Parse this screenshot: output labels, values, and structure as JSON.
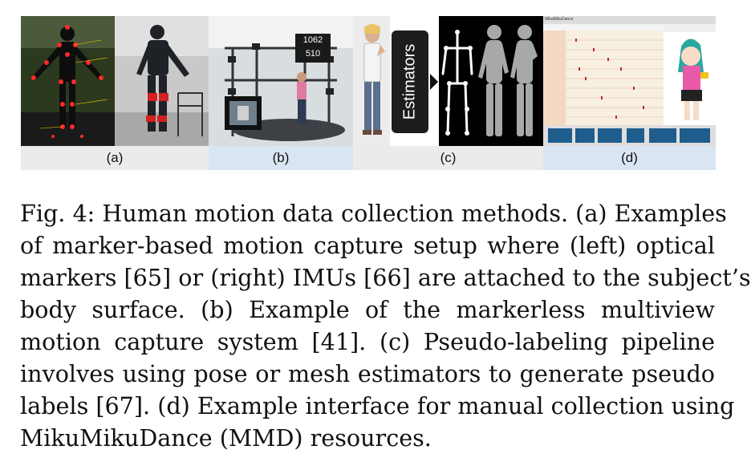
{
  "figure": {
    "panels": [
      {
        "label": "(a)",
        "strip": "gray"
      },
      {
        "label": "(b)",
        "strip": "blue"
      },
      {
        "label": "(c)",
        "strip": "gray"
      },
      {
        "label": "(d)",
        "strip": "blue"
      }
    ],
    "estimators_label": "Estimators",
    "capture_counter": [
      "1062",
      "510"
    ],
    "mmd_window_title": "MikuMikuDance"
  },
  "caption": {
    "lines": [
      "Fig. 4: Human motion data collection methods. (a) Examples",
      "of marker-based motion capture setup where (left) optical",
      "markers [65] or (right) IMUs [66] are attached to the subject’s",
      "body surface. (b) Example of the markerless multiview",
      "motion capture system [41]. (c) Pseudo-labeling pipeline",
      "involves using pose or mesh estimators to generate pseudo",
      "labels [67]. (d) Example interface for manual collection using",
      "MikuMikuDance (MMD) resources."
    ]
  },
  "colors": {
    "strip_gray": "#ebebeb",
    "strip_blue": "#d9e5f2",
    "marker_red": "#ff2a2a",
    "mmd_pink": "#e85aa8"
  }
}
